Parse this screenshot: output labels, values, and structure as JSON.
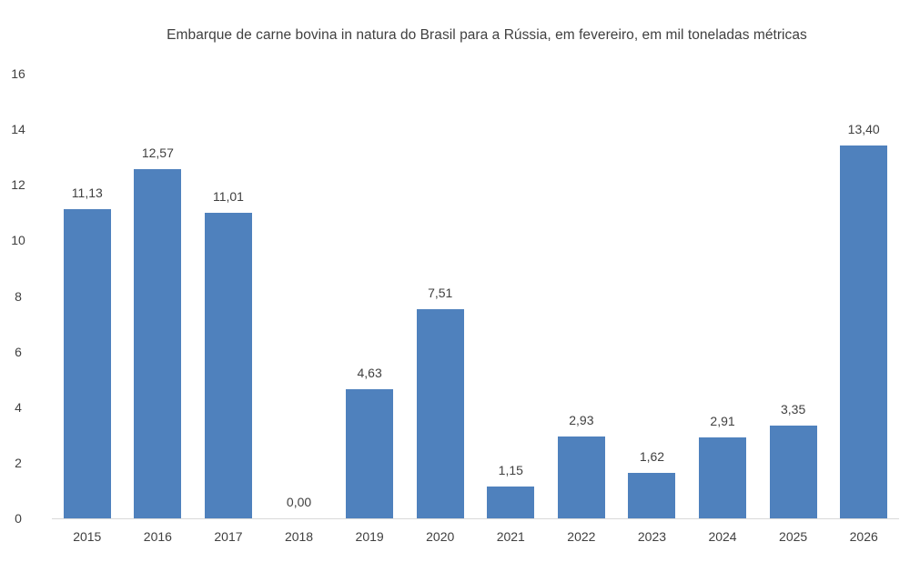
{
  "chart_data": {
    "type": "bar",
    "title": "Embarque de carne bovina in natura do Brasil para a Rússia, em fevereiro, em mil toneladas métricas",
    "xlabel": "",
    "ylabel": "",
    "categories": [
      "2015",
      "2016",
      "2017",
      "2018",
      "2019",
      "2020",
      "2021",
      "2022",
      "2023",
      "2024",
      "2025",
      "2026"
    ],
    "values": [
      11.13,
      12.57,
      11.01,
      0.0,
      4.63,
      7.51,
      1.15,
      2.93,
      1.62,
      2.91,
      3.35,
      13.4
    ],
    "data_labels": [
      "11,13",
      "12,57",
      "11,01",
      "0,00",
      "4,63",
      "7,51",
      "1,15",
      "2,93",
      "1,62",
      "2,91",
      "3,35",
      "13,40"
    ],
    "ylim": [
      0,
      16
    ],
    "yticks": [
      "0",
      "2",
      "4",
      "6",
      "8",
      "10",
      "12",
      "14",
      "16"
    ],
    "grid": false,
    "legend": null,
    "colors": {
      "bar": "#4f81bd",
      "text": "#404040",
      "axis": "#d9d9d9"
    }
  }
}
